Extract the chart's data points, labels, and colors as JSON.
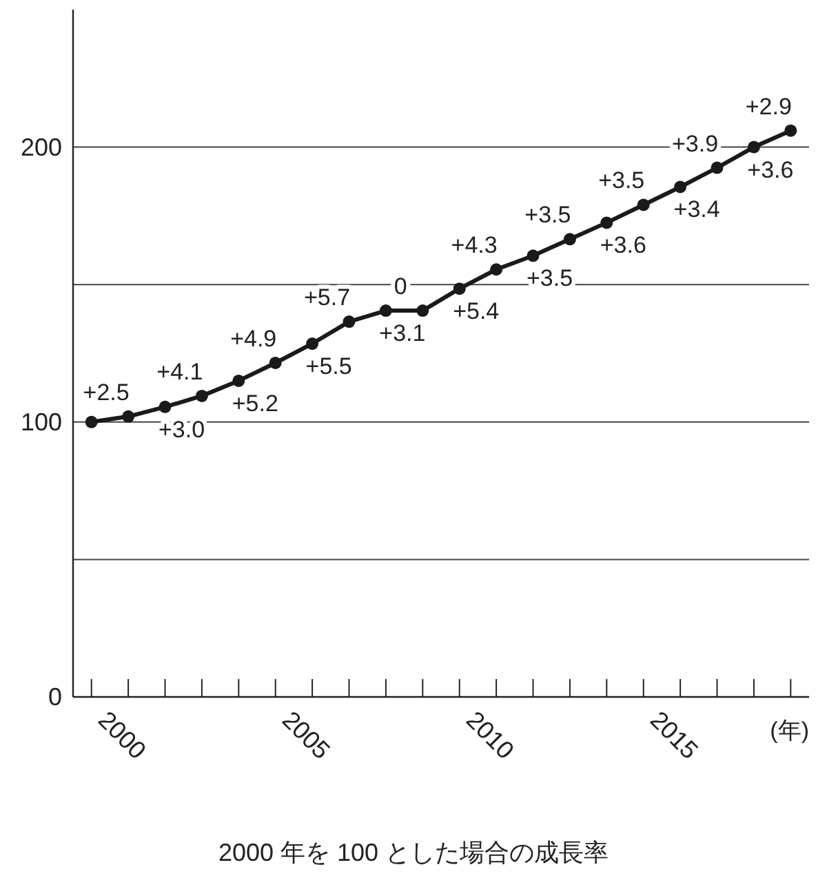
{
  "chart_data": {
    "type": "line",
    "title": "2000 年を 100 とした場合の成長率",
    "xlabel": "(年)",
    "x": [
      2000,
      2001,
      2002,
      2003,
      2004,
      2005,
      2006,
      2007,
      2008,
      2009,
      2010,
      2011,
      2012,
      2013,
      2014,
      2015,
      2016,
      2017,
      2018,
      2019
    ],
    "series": [
      {
        "color": "#1a1a1a",
        "values": [
          100,
          102,
          105.5,
          109.5,
          115,
          121.5,
          128.5,
          136.5,
          140.5,
          140.5,
          148.5,
          155.5,
          160.5,
          166.5,
          172.5,
          179,
          185.5,
          192.5,
          200,
          206
        ]
      }
    ],
    "annotations": [
      {
        "text": "+2.5",
        "x": 2001,
        "y": 102
      },
      {
        "text": "+3.0",
        "x": 2002,
        "y": 105.5
      },
      {
        "text": "+4.1",
        "x": 2003,
        "y": 109.5
      },
      {
        "text": "+5.2",
        "x": 2004,
        "y": 115
      },
      {
        "text": "+4.9",
        "x": 2005,
        "y": 121.5
      },
      {
        "text": "+5.5",
        "x": 2006,
        "y": 128.5
      },
      {
        "text": "+5.7",
        "x": 2007,
        "y": 136.5
      },
      {
        "text": "+3.1",
        "x": 2008,
        "y": 140.5
      },
      {
        "text": "0",
        "x": 2009,
        "y": 140.5
      },
      {
        "text": "+5.4",
        "x": 2010,
        "y": 148.5
      },
      {
        "text": "+4.3",
        "x": 2011,
        "y": 155.5
      },
      {
        "text": "+3.5",
        "x": 2012,
        "y": 160.5
      },
      {
        "text": "+3.5",
        "x": 2013,
        "y": 166.5
      },
      {
        "text": "+3.6",
        "x": 2014,
        "y": 172.5
      },
      {
        "text": "+3.5",
        "x": 2015,
        "y": 179
      },
      {
        "text": "+3.4",
        "x": 2016,
        "y": 185.5
      },
      {
        "text": "+3.9",
        "x": 2017,
        "y": 192.5
      },
      {
        "text": "+3.6",
        "x": 2018,
        "y": 200
      },
      {
        "text": "+2.9",
        "x": 2019,
        "y": 206
      }
    ],
    "xlim": [
      1999.5,
      2019.5
    ],
    "xticks": [
      2000,
      {
        "value": 2001,
        "label": null
      },
      {
        "value": 2002,
        "label": null
      },
      {
        "value": 2003,
        "label": null
      },
      {
        "value": 2004,
        "label": null
      },
      2005,
      {
        "value": 2006,
        "label": null
      },
      {
        "value": 2007,
        "label": null
      },
      {
        "value": 2008,
        "label": null
      },
      {
        "value": 2009,
        "label": null
      },
      2010,
      {
        "value": 2011,
        "label": null
      },
      {
        "value": 2012,
        "label": null
      },
      {
        "value": 2013,
        "label": null
      },
      {
        "value": 2014,
        "label": null
      },
      2015,
      {
        "value": 2016,
        "label": null
      },
      {
        "value": 2017,
        "label": null
      },
      {
        "value": 2018,
        "label": null
      },
      {
        "value": 2019,
        "label": null
      }
    ],
    "ylim": [
      0,
      250
    ],
    "yticks": [
      0,
      {
        "value": 50,
        "label": null
      },
      100,
      {
        "value": 150,
        "label": null
      },
      200
    ],
    "grid": "y",
    "marker": "circle",
    "line_style": "solid"
  }
}
